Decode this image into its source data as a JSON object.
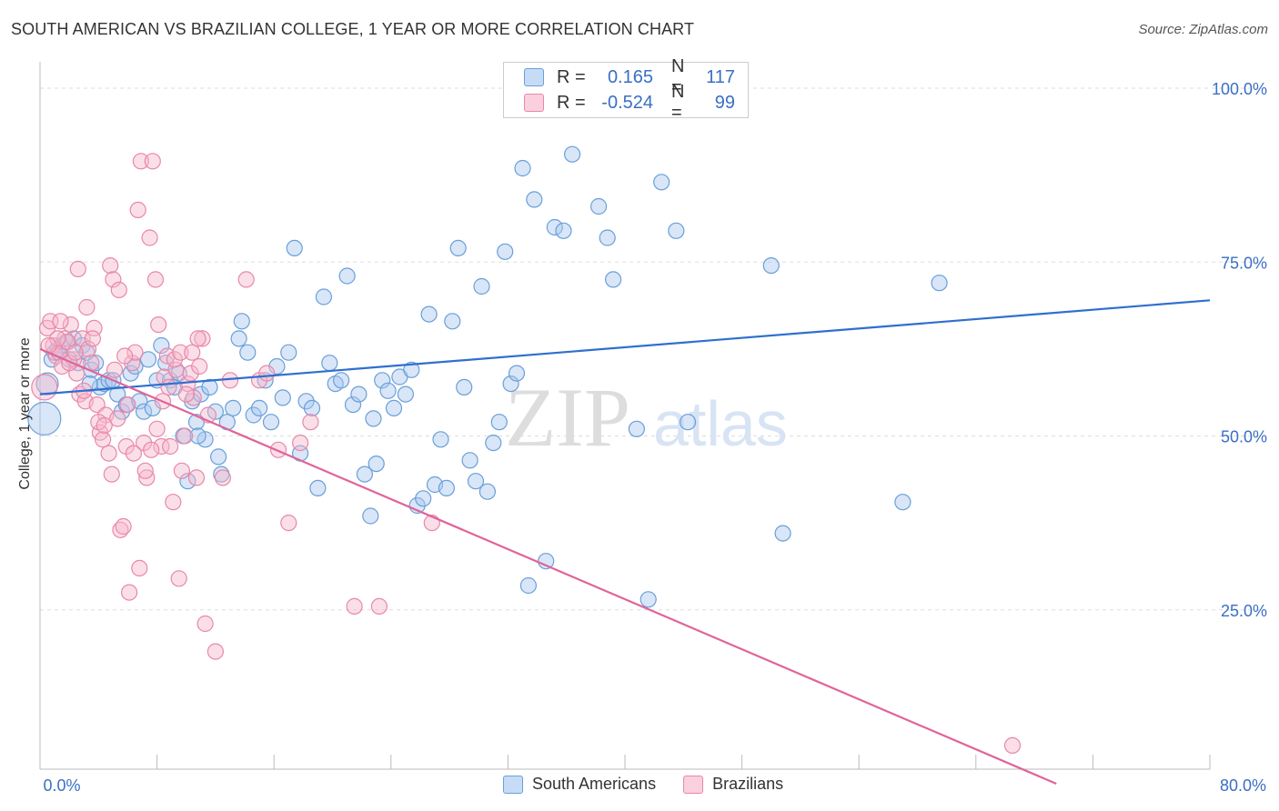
{
  "title": "SOUTH AMERICAN VS BRAZILIAN COLLEGE, 1 YEAR OR MORE CORRELATION CHART",
  "source": "Source: ZipAtlas.com",
  "legend_box": {
    "rows": [
      {
        "r_label": "R =",
        "r_value": "0.165",
        "n_label": "N =",
        "n_value": "117"
      },
      {
        "r_label": "R =",
        "r_value": "-0.524",
        "n_label": "N =",
        "n_value": "99"
      }
    ]
  },
  "bottom_legend": {
    "items": [
      "South Americans",
      "Brazilians"
    ]
  },
  "colors": {
    "blue_fill": "#a8c8f0",
    "blue_stroke": "#6a9fd8",
    "blue_line": "#2f6fcf",
    "pink_fill": "#f6b8cc",
    "pink_stroke": "#e888a8",
    "pink_line": "#e0649a",
    "tick_label": "#3a6fc4",
    "grid": "#dddddd"
  },
  "watermark": {
    "zip": "ZIP",
    "atlas": "atlas"
  },
  "chart_data": {
    "type": "scatter",
    "title": "SOUTH AMERICAN VS BRAZILIAN COLLEGE, 1 YEAR OR MORE CORRELATION CHART",
    "xlabel": "",
    "ylabel": "College, 1 year or more",
    "xlim": [
      0,
      80
    ],
    "ylim": [
      0,
      100
    ],
    "x_tick_labels": [
      "0.0%",
      "80.0%"
    ],
    "y_ticks": [
      25,
      50,
      75,
      100
    ],
    "y_tick_labels": [
      "25.0%",
      "50.0%",
      "75.0%",
      "100.0%"
    ],
    "grid": true,
    "legend_position": "top-center",
    "series": [
      {
        "name": "South Americans",
        "color": "#a8c8f0",
        "trend": {
          "x": [
            0,
            80
          ],
          "y": [
            56.0,
            69.5
          ]
        },
        "points": [
          [
            0.3,
            52.5
          ],
          [
            0.5,
            57.5
          ],
          [
            0.8,
            61
          ],
          [
            1.0,
            62
          ],
          [
            1.2,
            62.5
          ],
          [
            1.5,
            63
          ],
          [
            1.8,
            63.5
          ],
          [
            2.0,
            61
          ],
          [
            2.3,
            64
          ],
          [
            2.6,
            60.5
          ],
          [
            2.9,
            63
          ],
          [
            3.2,
            62
          ],
          [
            3.5,
            59.5
          ],
          [
            3.8,
            60.5
          ],
          [
            4.1,
            57
          ],
          [
            4.4,
            57.5
          ],
          [
            4.7,
            58
          ],
          [
            5.0,
            58
          ],
          [
            5.3,
            56
          ],
          [
            5.6,
            53.5
          ],
          [
            5.9,
            54.5
          ],
          [
            6.2,
            59
          ],
          [
            6.5,
            60
          ],
          [
            6.8,
            55
          ],
          [
            7.1,
            53.5
          ],
          [
            7.4,
            61
          ],
          [
            7.7,
            54
          ],
          [
            8.0,
            58
          ],
          [
            8.3,
            63
          ],
          [
            8.6,
            60.5
          ],
          [
            8.9,
            58
          ],
          [
            9.2,
            57
          ],
          [
            9.5,
            59
          ],
          [
            9.8,
            50
          ],
          [
            10.1,
            43.5
          ],
          [
            10.4,
            55
          ],
          [
            10.7,
            52
          ],
          [
            11.0,
            56
          ],
          [
            11.3,
            49.5
          ],
          [
            11.6,
            57
          ],
          [
            12.0,
            53.5
          ],
          [
            12.4,
            44.5
          ],
          [
            12.8,
            52
          ],
          [
            13.2,
            54
          ],
          [
            13.6,
            64
          ],
          [
            13.8,
            66.5
          ],
          [
            14.2,
            62
          ],
          [
            14.6,
            53
          ],
          [
            15.0,
            54
          ],
          [
            15.4,
            58
          ],
          [
            15.8,
            52
          ],
          [
            16.2,
            60
          ],
          [
            16.6,
            55.5
          ],
          [
            17.0,
            62
          ],
          [
            17.4,
            77
          ],
          [
            17.8,
            47.5
          ],
          [
            18.2,
            55
          ],
          [
            18.6,
            54
          ],
          [
            19.0,
            42.5
          ],
          [
            19.4,
            70
          ],
          [
            19.8,
            60.5
          ],
          [
            20.2,
            57.5
          ],
          [
            20.6,
            58
          ],
          [
            21.0,
            73
          ],
          [
            21.4,
            54.5
          ],
          [
            21.8,
            56
          ],
          [
            22.2,
            44.5
          ],
          [
            22.6,
            38.5
          ],
          [
            23.0,
            46
          ],
          [
            23.4,
            58
          ],
          [
            23.8,
            56.5
          ],
          [
            24.2,
            54
          ],
          [
            24.6,
            58.5
          ],
          [
            25.0,
            56
          ],
          [
            25.4,
            59.5
          ],
          [
            25.8,
            40
          ],
          [
            26.2,
            41
          ],
          [
            26.6,
            67.5
          ],
          [
            27.0,
            43
          ],
          [
            27.4,
            49.5
          ],
          [
            27.8,
            42.5
          ],
          [
            28.2,
            66.5
          ],
          [
            28.6,
            77
          ],
          [
            29.0,
            57
          ],
          [
            29.4,
            46.5
          ],
          [
            29.8,
            43.5
          ],
          [
            30.2,
            71.5
          ],
          [
            30.6,
            42
          ],
          [
            31.0,
            49
          ],
          [
            31.4,
            52
          ],
          [
            31.8,
            76.5
          ],
          [
            32.2,
            57.5
          ],
          [
            32.6,
            59
          ],
          [
            33.0,
            88.5
          ],
          [
            33.4,
            28.5
          ],
          [
            33.8,
            84
          ],
          [
            34.6,
            32
          ],
          [
            35.2,
            80
          ],
          [
            35.8,
            79.5
          ],
          [
            36.4,
            90.5
          ],
          [
            38.2,
            83
          ],
          [
            38.8,
            78.5
          ],
          [
            39.2,
            72.5
          ],
          [
            40.0,
            100
          ],
          [
            40.8,
            51
          ],
          [
            41.6,
            26.5
          ],
          [
            42.5,
            86.5
          ],
          [
            43.5,
            79.5
          ],
          [
            44.3,
            52
          ],
          [
            50.0,
            74.5
          ],
          [
            50.8,
            36
          ],
          [
            59.0,
            40.5
          ],
          [
            61.5,
            72
          ],
          [
            22.8,
            52.5
          ],
          [
            12.2,
            47
          ],
          [
            10.8,
            50
          ],
          [
            3.4,
            57.5
          ]
        ]
      },
      {
        "name": "Brazilians",
        "color": "#f6b8cc",
        "trend": {
          "x": [
            0,
            69.5
          ],
          "y": [
            62.5,
            0
          ]
        },
        "points": [
          [
            0.3,
            57
          ],
          [
            0.5,
            65.5
          ],
          [
            0.7,
            66.5
          ],
          [
            0.9,
            63
          ],
          [
            1.1,
            61.5
          ],
          [
            1.3,
            62
          ],
          [
            1.5,
            60
          ],
          [
            1.7,
            64
          ],
          [
            1.9,
            63.5
          ],
          [
            2.1,
            66
          ],
          [
            2.3,
            61
          ],
          [
            2.5,
            59
          ],
          [
            2.7,
            56
          ],
          [
            2.9,
            64
          ],
          [
            3.1,
            55
          ],
          [
            3.3,
            62.5
          ],
          [
            3.5,
            60.5
          ],
          [
            3.7,
            65.5
          ],
          [
            3.9,
            54.5
          ],
          [
            4.1,
            50.5
          ],
          [
            4.3,
            49.5
          ],
          [
            4.5,
            53
          ],
          [
            4.7,
            47.5
          ],
          [
            4.9,
            44.5
          ],
          [
            5.1,
            59.5
          ],
          [
            5.3,
            52.5
          ],
          [
            5.5,
            36.5
          ],
          [
            5.7,
            37
          ],
          [
            5.9,
            48.5
          ],
          [
            6.1,
            27.5
          ],
          [
            6.3,
            60.5
          ],
          [
            6.5,
            62
          ],
          [
            6.7,
            82.5
          ],
          [
            6.9,
            89.5
          ],
          [
            7.1,
            49
          ],
          [
            7.3,
            44
          ],
          [
            7.5,
            78.5
          ],
          [
            7.7,
            89.5
          ],
          [
            7.9,
            72.5
          ],
          [
            8.1,
            66
          ],
          [
            8.3,
            48.5
          ],
          [
            8.5,
            58.5
          ],
          [
            8.7,
            61.5
          ],
          [
            8.9,
            48.5
          ],
          [
            9.1,
            40.5
          ],
          [
            9.3,
            59.5
          ],
          [
            9.5,
            29.5
          ],
          [
            9.7,
            45
          ],
          [
            9.9,
            50
          ],
          [
            10.1,
            57.5
          ],
          [
            10.3,
            59
          ],
          [
            10.5,
            55.5
          ],
          [
            10.7,
            44
          ],
          [
            10.9,
            60
          ],
          [
            11.1,
            64
          ],
          [
            11.3,
            23
          ],
          [
            11.5,
            53
          ],
          [
            12.0,
            19
          ],
          [
            13.0,
            58
          ],
          [
            14.1,
            72.5
          ],
          [
            15.0,
            58
          ],
          [
            16.3,
            48
          ],
          [
            17.0,
            37.5
          ],
          [
            18.5,
            52
          ],
          [
            21.5,
            25.5
          ],
          [
            23.2,
            25.5
          ],
          [
            26.8,
            37.5
          ],
          [
            1.2,
            64
          ],
          [
            1.4,
            66.5
          ],
          [
            2.0,
            60.5
          ],
          [
            2.4,
            62
          ],
          [
            3.0,
            56.5
          ],
          [
            3.2,
            68.5
          ],
          [
            3.6,
            64
          ],
          [
            4.0,
            52
          ],
          [
            4.4,
            51.5
          ],
          [
            4.8,
            74.5
          ],
          [
            5.0,
            72.5
          ],
          [
            5.4,
            71
          ],
          [
            5.8,
            61.5
          ],
          [
            6.0,
            54.5
          ],
          [
            6.4,
            47.5
          ],
          [
            6.8,
            31
          ],
          [
            7.2,
            45
          ],
          [
            7.6,
            48
          ],
          [
            8.0,
            51
          ],
          [
            8.4,
            55
          ],
          [
            8.8,
            57
          ],
          [
            9.2,
            61
          ],
          [
            9.6,
            62
          ],
          [
            10.0,
            56
          ],
          [
            10.4,
            62
          ],
          [
            10.8,
            64
          ],
          [
            12.5,
            44
          ],
          [
            15.5,
            59
          ],
          [
            17.8,
            49
          ],
          [
            66.5,
            5.5
          ],
          [
            2.6,
            74
          ],
          [
            0.6,
            63
          ]
        ]
      }
    ]
  }
}
